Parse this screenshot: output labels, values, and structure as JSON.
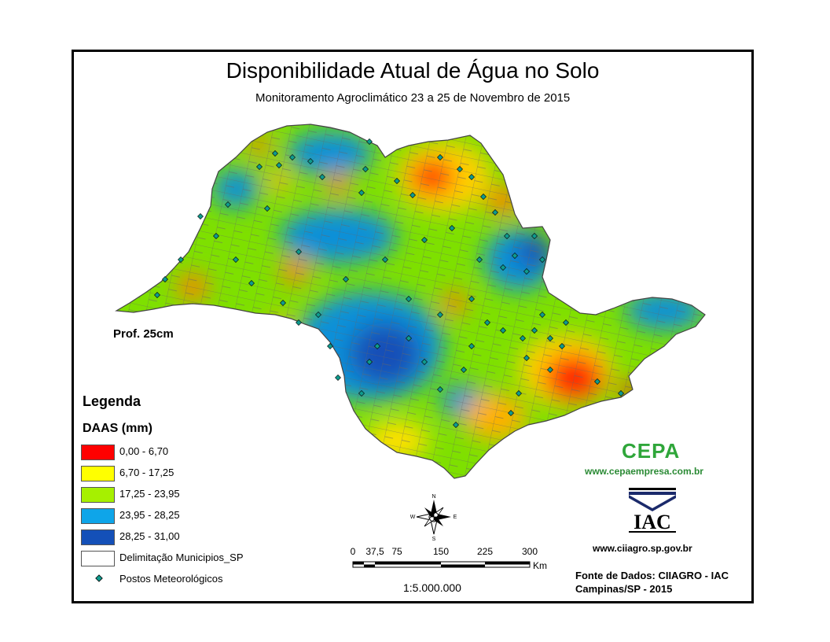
{
  "title": "Disponibilidade Atual de Água no Solo",
  "subtitle": "Monitoramento Agroclimático 23 a 25 de Novembro de 2015",
  "depth_label": "Prof. 25cm",
  "legend": {
    "title": "Legenda",
    "subtitle": "DAAS (mm)",
    "classes": [
      {
        "label": "0,00 - 6,70",
        "color": "#ff0000"
      },
      {
        "label": "6,70 - 17,25",
        "color": "#ffff00"
      },
      {
        "label": "17,25 - 23,95",
        "color": "#a6f000"
      },
      {
        "label": "23,95 - 28,25",
        "color": "#0ea5e9"
      },
      {
        "label": "28,25 - 31,00",
        "color": "#1450b8"
      }
    ],
    "boundary_label": "Delimitação Municipios_SP",
    "stations_label": "Postos Meteorológicos",
    "station_color": "#0f9b8e"
  },
  "scale_bar": {
    "ticks": [
      "0",
      "37,5",
      "75",
      "150",
      "225",
      "300"
    ],
    "unit": "Km",
    "ratio": "1:5.000.000"
  },
  "compass": {
    "n": "N",
    "s": "S",
    "e": "E",
    "w": "W"
  },
  "logos": {
    "cepa_text": "CEPA",
    "cepa_url": "www.cepaempresa.com.br",
    "iac_text": "IAC",
    "iac_url": "www.ciiagro.sp.gov.br"
  },
  "source_line1": "Fonte de Dados: CIIAGRO - IAC",
  "source_line2": "Campinas/SP - 2015",
  "colors": {
    "dry": "#ff0000",
    "low": "#ffff00",
    "mid": "#a6f000",
    "wet": "#0ea5e9",
    "very_wet": "#1450b8",
    "boundary": "#555555"
  }
}
